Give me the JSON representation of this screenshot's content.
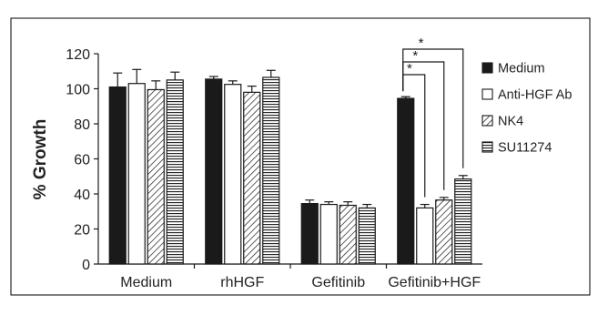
{
  "chart_data": {
    "type": "bar",
    "ylabel": "% Growth",
    "ylim": [
      0,
      120
    ],
    "yticks": [
      0,
      20,
      40,
      60,
      80,
      100,
      120
    ],
    "categories": [
      "Medium",
      "rhHGF",
      "Gefitinib",
      "Gefitinib+HGF"
    ],
    "series": [
      {
        "name": "Medium",
        "pattern": "solid",
        "values": [
          101,
          105.5,
          34.5,
          94.5
        ],
        "errors": [
          8,
          1.5,
          2,
          1
        ]
      },
      {
        "name": "Anti-HGF Ab",
        "pattern": "open",
        "values": [
          103,
          102.5,
          34,
          32
        ],
        "errors": [
          8,
          2,
          1.5,
          2
        ]
      },
      {
        "name": "NK4",
        "pattern": "diagonal",
        "values": [
          99.5,
          98,
          33.5,
          36.5
        ],
        "errors": [
          5,
          3.5,
          2,
          1.5
        ]
      },
      {
        "name": "SU11274",
        "pattern": "horizontal",
        "values": [
          105,
          106.5,
          32,
          48.5
        ],
        "errors": [
          4.5,
          4,
          2,
          2
        ]
      }
    ],
    "legend_position": "right",
    "grid": false,
    "significance": {
      "category": "Gefitinib+HGF",
      "label": "*",
      "comparisons": [
        "Anti-HGF Ab",
        "NK4",
        "SU11274"
      ]
    }
  },
  "colors": {
    "bar_fill": "#1a1a1a",
    "stroke": "#1a1a1a",
    "frame": "#000000"
  }
}
